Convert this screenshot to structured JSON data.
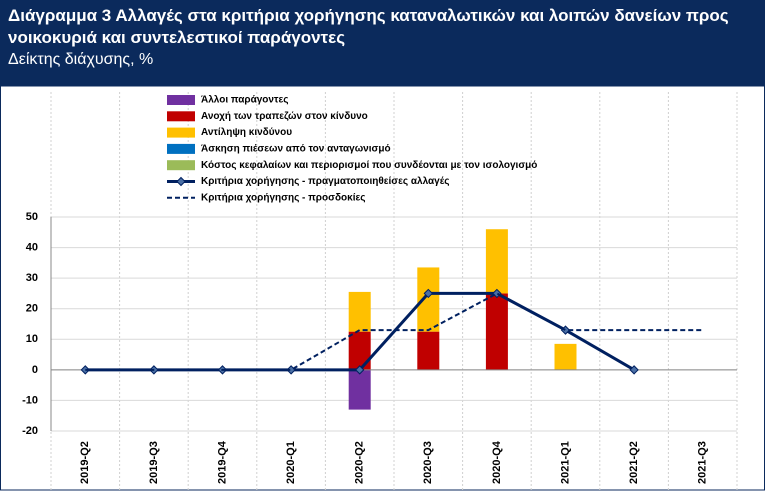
{
  "chart_data": {
    "type": "bar",
    "title": "Διάγραμμα 3 Αλλαγές στα κριτήρια χορήγησης καταναλωτικών και λοιπών δανείων προς νοικοκυριά και συντελεστικοί παράγοντες",
    "subtitle": "Δείκτης διάχυσης, %",
    "categories": [
      "2019-Q2",
      "2019-Q3",
      "2019-Q4",
      "2020-Q1",
      "2020-Q2",
      "2020-Q3",
      "2020-Q4",
      "2021-Q1",
      "2021-Q2",
      "2021-Q3"
    ],
    "series": [
      {
        "name": "Άλλοι παράγοντες",
        "color": "#7030a0",
        "kind": "bar",
        "values": [
          0,
          0,
          0,
          0,
          -13,
          0,
          0,
          0,
          0,
          0
        ]
      },
      {
        "name": "Ανοχή των τραπεζών στον κίνδυνο",
        "color": "#c00000",
        "kind": "bar",
        "values": [
          0,
          0,
          0,
          0,
          12.5,
          12.5,
          25,
          0,
          0,
          0
        ]
      },
      {
        "name": "Αντίληψη κινδύνου",
        "color": "#ffc000",
        "kind": "bar",
        "values": [
          0,
          0,
          0,
          0,
          13,
          21,
          21,
          8.5,
          0,
          0
        ]
      },
      {
        "name": "Άσκηση πιέσεων από τον ανταγωνισμό",
        "color": "#0070c0",
        "kind": "bar",
        "values": [
          0,
          0,
          0,
          0,
          0,
          0,
          0,
          0,
          0,
          0
        ]
      },
      {
        "name": "Κόστος κεφαλαίων και περιορισμοί που συνδέονται με τον ισολογισμό",
        "color": "#9bbb59",
        "kind": "bar",
        "values": [
          0,
          0,
          0,
          0,
          0,
          0,
          0,
          0,
          0,
          0
        ]
      },
      {
        "name": "Κριτήρια χορήγησης - πραγματοποιηθείσες αλλαγές",
        "color": "#002060",
        "kind": "line",
        "values": [
          0,
          0,
          0,
          0,
          0,
          25,
          25,
          13,
          0,
          null
        ]
      },
      {
        "name": "Κριτήρια χορήγησης - προσδοκίες",
        "color": "#002060",
        "kind": "dashed",
        "values": [
          0,
          0,
          0,
          0,
          13,
          13,
          25,
          13,
          13,
          13
        ]
      }
    ],
    "ylim": [
      -20,
      50
    ],
    "yticks": [
      -20,
      -10,
      0,
      10,
      20,
      30,
      40,
      50
    ],
    "grid": true
  }
}
